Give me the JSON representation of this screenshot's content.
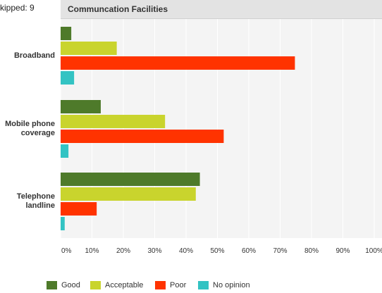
{
  "header": {
    "skipped_text": "kipped: 9",
    "title": "Communcation Facilities"
  },
  "chart_data": {
    "type": "bar",
    "orientation": "horizontal",
    "title": "Communcation Facilities",
    "categories": [
      "Broadband",
      "Mobile phone coverage",
      "Telephone landline"
    ],
    "category_lines": [
      [
        "Broadband"
      ],
      [
        "Mobile phone",
        "coverage"
      ],
      [
        "Telephone",
        "landline"
      ]
    ],
    "series": [
      {
        "name": "Good",
        "color": "#4e7a2a",
        "values": [
          3.4,
          12.8,
          44.4
        ]
      },
      {
        "name": "Acceptable",
        "color": "#c9d42d",
        "values": [
          17.9,
          33.3,
          43.1
        ]
      },
      {
        "name": "Poor",
        "color": "#ff3300",
        "values": [
          74.7,
          52.0,
          11.5
        ]
      },
      {
        "name": "No opinion",
        "color": "#33c3c3",
        "values": [
          4.3,
          2.5,
          1.3
        ]
      }
    ],
    "xlim": [
      0,
      100
    ],
    "xticks": [
      "0%",
      "10%",
      "20%",
      "30%",
      "40%",
      "50%",
      "60%",
      "70%",
      "80%",
      "90%",
      "100%"
    ],
    "grid": true,
    "legend_position": "bottom"
  }
}
